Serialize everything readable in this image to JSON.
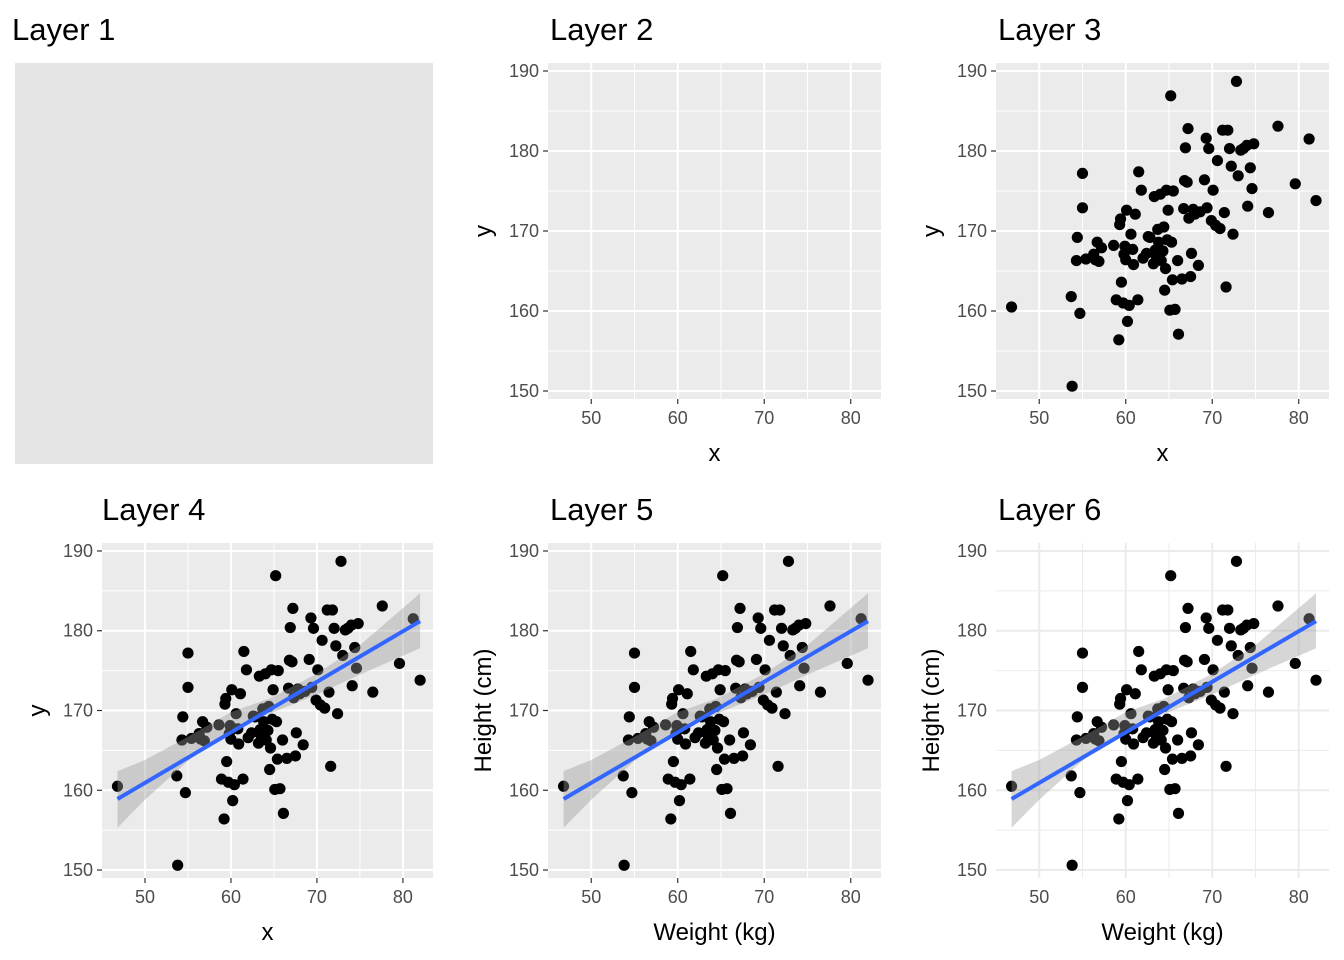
{
  "chart_data": [
    {
      "type": "scatter",
      "title": "Layer 1",
      "panel_background": "#e5e5e5",
      "show_axes": false,
      "show_points": false,
      "show_fit": false,
      "theme": "grey",
      "xlabel": "",
      "ylabel": "",
      "xlim": [
        45,
        83.5
      ],
      "ylim": [
        149,
        191
      ],
      "x_ticks": [],
      "y_ticks": []
    },
    {
      "type": "scatter",
      "title": "Layer 2",
      "panel_background": "#ebebeb",
      "show_axes": true,
      "show_points": false,
      "show_fit": false,
      "theme": "grey",
      "xlabel": "x",
      "ylabel": "y",
      "xlim": [
        45,
        83.5
      ],
      "ylim": [
        149,
        191
      ],
      "x_ticks": [
        "50",
        "60",
        "70",
        "80"
      ],
      "y_ticks": [
        "150",
        "160",
        "170",
        "180",
        "190"
      ]
    },
    {
      "type": "scatter",
      "title": "Layer 3",
      "panel_background": "#ebebeb",
      "show_axes": true,
      "show_points": true,
      "show_fit": false,
      "theme": "grey",
      "xlabel": "x",
      "ylabel": "y",
      "xlim": [
        45,
        83.5
      ],
      "ylim": [
        149,
        191
      ],
      "x_ticks": [
        "50",
        "60",
        "70",
        "80"
      ],
      "y_ticks": [
        "150",
        "160",
        "170",
        "180",
        "190"
      ]
    },
    {
      "type": "scatter",
      "title": "Layer 4",
      "panel_background": "#ebebeb",
      "show_axes": true,
      "show_points": true,
      "show_fit": true,
      "theme": "grey",
      "xlabel": "x",
      "ylabel": "y",
      "xlim": [
        45,
        83.5
      ],
      "ylim": [
        149,
        191
      ],
      "x_ticks": [
        "50",
        "60",
        "70",
        "80"
      ],
      "y_ticks": [
        "150",
        "160",
        "170",
        "180",
        "190"
      ]
    },
    {
      "type": "scatter",
      "title": "Layer 5",
      "panel_background": "#ebebeb",
      "show_axes": true,
      "show_points": true,
      "show_fit": true,
      "theme": "grey",
      "xlabel": "Weight (kg)",
      "ylabel": "Height (cm)",
      "xlim": [
        45,
        83.5
      ],
      "ylim": [
        149,
        191
      ],
      "x_ticks": [
        "50",
        "60",
        "70",
        "80"
      ],
      "y_ticks": [
        "150",
        "160",
        "170",
        "180",
        "190"
      ]
    },
    {
      "type": "scatter",
      "title": "Layer 6",
      "panel_background": "#ffffff",
      "show_axes": true,
      "show_points": true,
      "show_fit": true,
      "theme": "minimal",
      "xlabel": "Weight (kg)",
      "ylabel": "Height (cm)",
      "xlim": [
        45,
        83.5
      ],
      "ylim": [
        149,
        191
      ],
      "x_ticks": [
        "50",
        "60",
        "70",
        "80"
      ],
      "y_ticks": [
        "150",
        "160",
        "170",
        "180",
        "190"
      ]
    }
  ],
  "shared": {
    "points": [
      [
        46.8,
        160.5
      ],
      [
        53.7,
        161.8
      ],
      [
        53.8,
        150.6
      ],
      [
        54.3,
        166.3
      ],
      [
        54.4,
        169.2
      ],
      [
        54.7,
        159.7
      ],
      [
        55.0,
        177.2
      ],
      [
        55.0,
        172.9
      ],
      [
        55.4,
        166.5
      ],
      [
        56.3,
        167.1
      ],
      [
        56.5,
        166.4
      ],
      [
        56.7,
        168.6
      ],
      [
        56.9,
        166.2
      ],
      [
        57.2,
        167.9
      ],
      [
        58.6,
        168.2
      ],
      [
        58.9,
        161.4
      ],
      [
        59.2,
        156.4
      ],
      [
        59.3,
        170.8
      ],
      [
        59.4,
        171.5
      ],
      [
        59.5,
        163.6
      ],
      [
        59.7,
        161.0
      ],
      [
        59.8,
        167.1
      ],
      [
        59.9,
        168.1
      ],
      [
        60.0,
        166.4
      ],
      [
        60.1,
        172.6
      ],
      [
        60.2,
        158.7
      ],
      [
        60.4,
        160.7
      ],
      [
        60.6,
        169.6
      ],
      [
        60.8,
        167.7
      ],
      [
        60.9,
        165.8
      ],
      [
        61.1,
        172.1
      ],
      [
        61.4,
        161.4
      ],
      [
        61.5,
        177.4
      ],
      [
        61.8,
        175.1
      ],
      [
        62.0,
        166.6
      ],
      [
        62.4,
        167.2
      ],
      [
        62.6,
        169.3
      ],
      [
        62.8,
        169.2
      ],
      [
        63.2,
        165.9
      ],
      [
        63.3,
        174.3
      ],
      [
        63.4,
        167.6
      ],
      [
        63.5,
        166.9
      ],
      [
        63.7,
        170.2
      ],
      [
        63.8,
        168.6
      ],
      [
        64.0,
        174.6
      ],
      [
        64.1,
        166.3
      ],
      [
        64.3,
        167.5
      ],
      [
        64.4,
        170.5
      ],
      [
        64.5,
        162.6
      ],
      [
        64.6,
        165.3
      ],
      [
        64.7,
        175.1
      ],
      [
        64.8,
        168.9
      ],
      [
        64.9,
        172.6
      ],
      [
        65.1,
        160.1
      ],
      [
        65.2,
        186.9
      ],
      [
        65.3,
        168.6
      ],
      [
        65.4,
        163.9
      ],
      [
        65.5,
        175.0
      ],
      [
        65.7,
        160.2
      ],
      [
        66.0,
        166.3
      ],
      [
        66.1,
        157.1
      ],
      [
        66.5,
        164.0
      ],
      [
        66.7,
        172.8
      ],
      [
        66.8,
        176.3
      ],
      [
        66.9,
        180.4
      ],
      [
        67.1,
        176.1
      ],
      [
        67.2,
        182.8
      ],
      [
        67.3,
        171.6
      ],
      [
        67.5,
        164.3
      ],
      [
        67.6,
        167.2
      ],
      [
        67.8,
        172.7
      ],
      [
        68.0,
        172.1
      ],
      [
        68.4,
        165.7
      ],
      [
        68.6,
        172.4
      ],
      [
        69.1,
        176.4
      ],
      [
        69.3,
        181.6
      ],
      [
        69.4,
        172.9
      ],
      [
        69.6,
        180.3
      ],
      [
        69.9,
        171.3
      ],
      [
        70.1,
        175.1
      ],
      [
        70.4,
        170.7
      ],
      [
        70.6,
        178.8
      ],
      [
        70.9,
        170.3
      ],
      [
        71.2,
        182.6
      ],
      [
        71.4,
        172.3
      ],
      [
        71.6,
        163.0
      ],
      [
        71.8,
        182.6
      ],
      [
        72.0,
        180.3
      ],
      [
        72.2,
        178.1
      ],
      [
        72.4,
        169.6
      ],
      [
        72.8,
        188.7
      ],
      [
        73.0,
        176.9
      ],
      [
        73.3,
        180.1
      ],
      [
        73.6,
        180.3
      ],
      [
        74.0,
        180.7
      ],
      [
        74.1,
        173.1
      ],
      [
        74.4,
        177.9
      ],
      [
        74.6,
        175.3
      ],
      [
        74.8,
        180.9
      ],
      [
        76.5,
        172.3
      ],
      [
        77.6,
        183.1
      ],
      [
        79.6,
        175.9
      ],
      [
        81.2,
        181.5
      ],
      [
        82.0,
        173.8
      ]
    ],
    "fit_line": {
      "x": [
        46.8,
        82.0
      ],
      "y": [
        158.9,
        181.2
      ]
    },
    "fit_band": {
      "x": [
        46.8,
        50,
        55,
        60,
        64.5,
        70,
        75,
        82
      ],
      "lower": [
        155.3,
        158.8,
        163.7,
        167.6,
        169.6,
        172.0,
        174.5,
        177.8
      ],
      "upper": [
        162.4,
        163.8,
        166.7,
        169.8,
        171.5,
        174.6,
        178.2,
        184.7
      ]
    },
    "point_color": "#000000",
    "line_color": "#3366ff",
    "band_color": "#999999",
    "grid_color_grey": "#ffffff",
    "grid_color_minimal": "#ebebeb"
  }
}
